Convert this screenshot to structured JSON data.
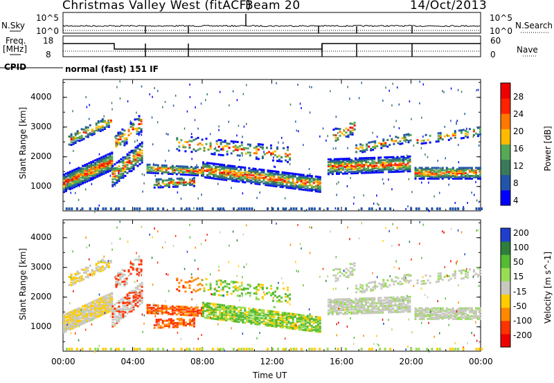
{
  "header": {
    "station": "Christmas Valley West (fitACF)",
    "beam": "Beam 20",
    "date": "14/Oct/2013"
  },
  "panels": {
    "nsky": {
      "label": "N.Sky",
      "ticks": [
        "10^5",
        "10^0"
      ],
      "right_label": "N.Search",
      "right_ticks": [
        "10^5",
        "10^0"
      ]
    },
    "freq": {
      "label_line1": "Freq.",
      "label_line2": "[MHz]",
      "ticks": [
        "18",
        "8"
      ],
      "right_label": "Nave",
      "right_ticks": [
        "60",
        "0"
      ]
    },
    "cpid": {
      "label": "CPID",
      "text": "normal (fast) 151 IF"
    }
  },
  "colors": {
    "power": [
      "#0000ff",
      "#2255aa",
      "#3a7a5a",
      "#55aa55",
      "#ffbb00",
      "#ff7700",
      "#ff2200",
      "#ee0000"
    ],
    "velocity": [
      "#1f3fcc",
      "#2e7f3a",
      "#55bb33",
      "#99dd55",
      "#c8c8c0",
      "#ffcc00",
      "#ff8800",
      "#ff3300",
      "#ee0000"
    ]
  },
  "chart_data": [
    {
      "type": "heatmap",
      "title": "",
      "ylabel": "Slant Range [km]",
      "xlabel": "",
      "ylim": [
        180,
        4600
      ],
      "y_ticks": [
        "1000",
        "2000",
        "3000",
        "4000"
      ],
      "colorbar": {
        "label": "Power [dB]",
        "ticks": [
          "28",
          "24",
          "20",
          "16",
          "12",
          "8",
          "4"
        ]
      }
    },
    {
      "type": "heatmap",
      "title": "",
      "ylabel": "Slant Range [km]",
      "xlabel": "Time UT",
      "ylim": [
        180,
        4600
      ],
      "y_ticks": [
        "1000",
        "2000",
        "3000",
        "4000"
      ],
      "x_ticks": [
        "00:00",
        "04:00",
        "08:00",
        "12:00",
        "16:00",
        "20:00",
        "00:00"
      ],
      "colorbar": {
        "label": "Velocity [m s^-1]",
        "ticks": [
          "200",
          "100",
          "50",
          "15",
          "-15",
          "-50",
          "-100",
          "-200"
        ]
      }
    }
  ]
}
